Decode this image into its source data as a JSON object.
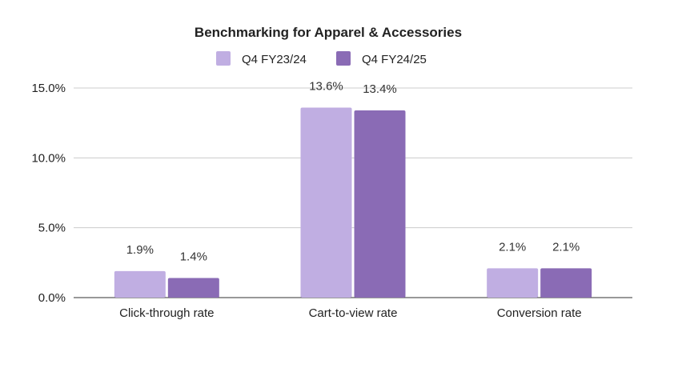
{
  "chart_data": {
    "type": "bar",
    "title": "Benchmarking for Apparel & Accessories",
    "categories": [
      "Click-through rate",
      "Cart-to-view rate",
      "Conversion rate"
    ],
    "series": [
      {
        "name": "Q4 FY23/24",
        "values": [
          1.9,
          13.6,
          2.1
        ],
        "labels": [
          "1.9%",
          "13.6%",
          "2.1%"
        ],
        "color": "#c0aee2"
      },
      {
        "name": "Q4 FY24/25",
        "values": [
          1.4,
          13.4,
          2.1
        ],
        "labels": [
          "1.4%",
          "13.4%",
          "2.1%"
        ],
        "color": "#8a6bb5"
      }
    ],
    "ylim": [
      0,
      15
    ],
    "yticks": [
      0,
      5,
      10,
      15
    ],
    "ytick_labels": [
      "0.0%",
      "5.0%",
      "10.0%",
      "15.0%"
    ],
    "xlabel": "",
    "ylabel": "",
    "grid": true,
    "legend": "top"
  }
}
